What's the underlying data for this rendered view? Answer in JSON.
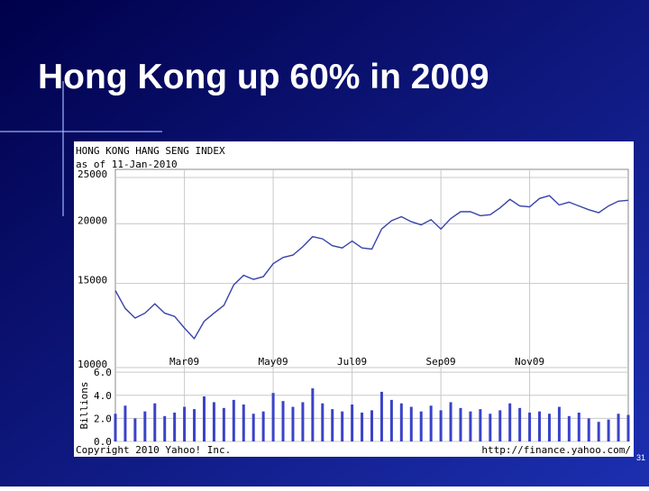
{
  "slide": {
    "title": "Hong Kong up 60% in 2009",
    "number": "31"
  },
  "chart_data": [
    {
      "type": "line",
      "title": "HONG KONG HANG SENG INDEX",
      "subtitle": "as of 11-Jan-2010",
      "categories": [
        null,
        null,
        null,
        null,
        null,
        null,
        null,
        "Mar09",
        null,
        null,
        null,
        null,
        null,
        null,
        null,
        null,
        "May09",
        null,
        null,
        null,
        null,
        null,
        null,
        null,
        "Jul09",
        null,
        null,
        null,
        null,
        null,
        null,
        null,
        null,
        "Sep09",
        null,
        null,
        null,
        null,
        null,
        null,
        null,
        null,
        "Nov09",
        null,
        null,
        null,
        null,
        null,
        null,
        null,
        null,
        null,
        null
      ],
      "values": [
        14500,
        13300,
        12700,
        13000,
        13600,
        13000,
        12800,
        12100,
        11500,
        12500,
        13000,
        13500,
        14900,
        15600,
        15300,
        15500,
        16500,
        17000,
        17200,
        17900,
        18800,
        18600,
        18000,
        17800,
        18400,
        17800,
        17700,
        19500,
        20300,
        20700,
        20200,
        19900,
        20400,
        19500,
        20500,
        21200,
        21200,
        20800,
        20900,
        21600,
        22500,
        21800,
        21700,
        22600,
        22900,
        21900,
        22200,
        21800,
        21400,
        21100,
        21800,
        22300,
        22400
      ],
      "color": "#3a43a8",
      "log_scale": true,
      "grid": true,
      "ylim": [
        10000,
        26000
      ],
      "yticks": [
        10000,
        15000,
        20000,
        25000
      ]
    },
    {
      "type": "bar",
      "ylabel": "Billions",
      "values": [
        2.4,
        3.1,
        2.0,
        2.6,
        3.3,
        2.2,
        2.5,
        3.0,
        2.8,
        3.9,
        3.4,
        2.9,
        3.6,
        3.2,
        2.4,
        2.6,
        4.2,
        3.5,
        3.0,
        3.4,
        4.6,
        3.3,
        2.8,
        2.6,
        3.2,
        2.5,
        2.7,
        4.3,
        3.6,
        3.3,
        3.0,
        2.6,
        3.1,
        2.7,
        3.4,
        2.9,
        2.6,
        2.8,
        2.4,
        2.7,
        3.3,
        2.9,
        2.5,
        2.6,
        2.4,
        3.0,
        2.2,
        2.5,
        2.0,
        1.7,
        1.9,
        2.4,
        2.3
      ],
      "color": "#3a43c8",
      "grid": true,
      "ylim": [
        0,
        6.4
      ],
      "yticks": [
        {
          "value": 0,
          "label": "0.0"
        },
        {
          "value": 2,
          "label": "2.0"
        },
        {
          "value": 4,
          "label": "4.0"
        },
        {
          "value": 6,
          "label": "6.0"
        }
      ],
      "footer_left": "Copyright 2010 Yahoo! Inc.",
      "footer_right": "http://finance.yahoo.com/"
    }
  ]
}
